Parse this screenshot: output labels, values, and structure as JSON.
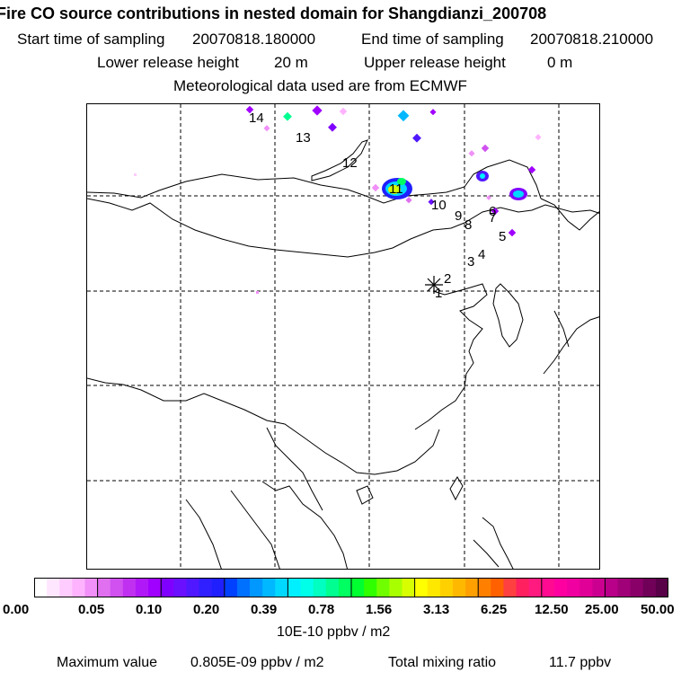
{
  "header": {
    "title": "Fire CO source contributions in nested domain for Shangdianzi_200708",
    "start_label": "Start time of sampling",
    "start_value": "20070818.180000",
    "end_label": "End time of sampling",
    "end_value": "20070818.210000",
    "lower_label": "Lower release height",
    "lower_value": "20 m",
    "upper_label": "Upper release height",
    "upper_value": "0 m",
    "met_line": "Meteorological data used are from ECMWF"
  },
  "map": {
    "receptor_marker": "asterisk-icon",
    "point_labels": [
      "1",
      "2",
      "3",
      "4",
      "5",
      "6",
      "7",
      "8",
      "9",
      "10",
      "11",
      "12",
      "13",
      "14"
    ]
  },
  "colorbar": {
    "ticks": [
      "0.00",
      "0.05",
      "0.10",
      "0.20",
      "0.39",
      "0.78",
      "1.56",
      "3.13",
      "6.25",
      "12.50",
      "25.00",
      "50.00"
    ],
    "unit": "10E-10 ppbv / m2",
    "colors": [
      "#ffffff",
      "#ffe6ff",
      "#ffccff",
      "#ffb3ff",
      "#f090f8",
      "#e070f0",
      "#d050f0",
      "#c030f0",
      "#b018f8",
      "#a000ff",
      "#8000ff",
      "#6a10ff",
      "#5018ff",
      "#3020ff",
      "#2020ff",
      "#0040ff",
      "#0070ff",
      "#0098ff",
      "#00b8ff",
      "#00d8ff",
      "#00f0ff",
      "#00ffe8",
      "#00ffc0",
      "#00ff90",
      "#00ff60",
      "#00ff30",
      "#30ff00",
      "#70ff00",
      "#a8ff00",
      "#d8ff00",
      "#ffff00",
      "#ffe800",
      "#ffd000",
      "#ffb800",
      "#ffa000",
      "#ff8000",
      "#ff6000",
      "#ff4040",
      "#ff2060",
      "#ff1a80",
      "#ff0a90",
      "#ff00a0",
      "#f000a0",
      "#e00098",
      "#cc0090",
      "#b80088",
      "#a00078",
      "#880068",
      "#700058",
      "#580048"
    ]
  },
  "footer": {
    "max_label": "Maximum value",
    "max_value": "0.805E-09 ppbv / m2",
    "total_label": "Total mixing ratio",
    "total_value": "11.7 ppbv"
  }
}
